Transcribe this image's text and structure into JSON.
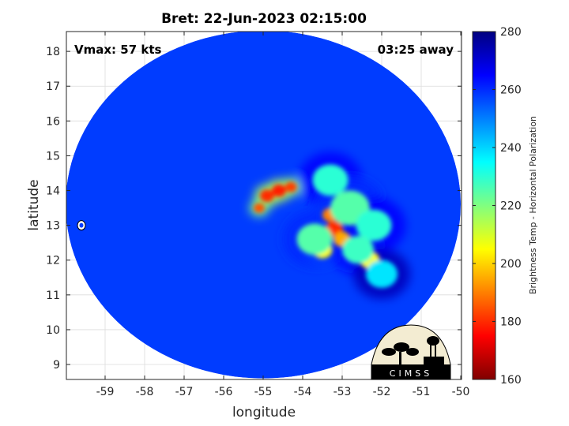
{
  "chart_data": {
    "type": "heatmap",
    "title": "Bret: 22-Jun-2023 02:15:00",
    "xlabel": "longitude",
    "ylabel": "latitude",
    "xlim": [
      -59.98,
      -49.98
    ],
    "ylim": [
      8.57,
      18.57
    ],
    "xticks": [
      -59,
      -58,
      -57,
      -56,
      -55,
      -54,
      -53,
      -52,
      -51,
      -50
    ],
    "yticks": [
      9,
      10,
      11,
      12,
      13,
      14,
      15,
      16,
      17,
      18
    ],
    "grid": true,
    "annotations": {
      "vmax": "Vmax: 57 kts",
      "time_away": "03:25 away"
    },
    "colorbar": {
      "label": "Brightness Temp - Horizontal Polarization",
      "min": 160,
      "max": 280,
      "ticks": [
        160,
        180,
        200,
        220,
        240,
        260,
        280
      ],
      "colormap": "jet"
    },
    "swath": {
      "center_lon": -55.0,
      "center_lat": 13.6,
      "radius_deg": 5.0
    },
    "background_value": 258,
    "features": [
      {
        "lon": -54.6,
        "lat": 14.0,
        "value": 178,
        "spread": 0.18
      },
      {
        "lon": -54.9,
        "lat": 13.85,
        "value": 180,
        "spread": 0.18
      },
      {
        "lon": -54.3,
        "lat": 14.1,
        "value": 182,
        "spread": 0.15
      },
      {
        "lon": -55.1,
        "lat": 13.5,
        "value": 185,
        "spread": 0.14
      },
      {
        "lon": -53.2,
        "lat": 12.9,
        "value": 180,
        "spread": 0.22
      },
      {
        "lon": -53.3,
        "lat": 13.3,
        "value": 190,
        "spread": 0.2
      },
      {
        "lon": -53.0,
        "lat": 12.6,
        "value": 195,
        "spread": 0.22
      },
      {
        "lon": -53.5,
        "lat": 12.3,
        "value": 205,
        "spread": 0.25
      },
      {
        "lon": -52.3,
        "lat": 12.0,
        "value": 205,
        "spread": 0.25
      },
      {
        "lon": -53.3,
        "lat": 14.3,
        "value": 230,
        "spread": 0.45
      },
      {
        "lon": -52.8,
        "lat": 13.5,
        "value": 225,
        "spread": 0.5
      },
      {
        "lon": -52.2,
        "lat": 13.0,
        "value": 230,
        "spread": 0.45
      },
      {
        "lon": -53.7,
        "lat": 12.6,
        "value": 225,
        "spread": 0.45
      },
      {
        "lon": -52.6,
        "lat": 12.3,
        "value": 228,
        "spread": 0.4
      },
      {
        "lon": -52.0,
        "lat": 11.6,
        "value": 238,
        "spread": 0.4
      }
    ],
    "outlier": {
      "lon": -59.6,
      "lat": 13.0,
      "label": "white contour"
    },
    "logo": "CIMSS",
    "colors": {
      "background_swath": "#1a4fe8",
      "axes": "#262626",
      "grid": "#dcdcdc"
    }
  }
}
